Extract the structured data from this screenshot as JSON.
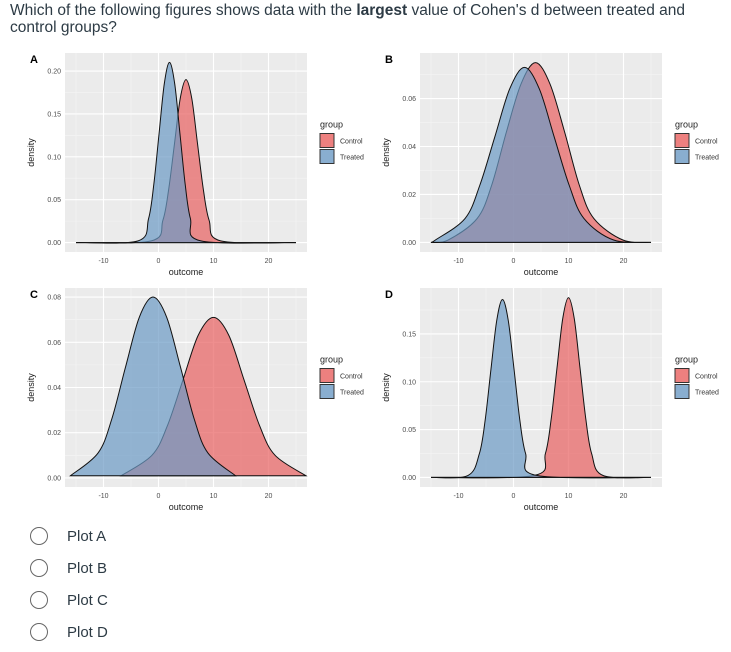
{
  "question": {
    "before": "Which of the following figures shows data with the ",
    "bold": "largest",
    "after": " value of Cohen's d between treated and control groups?"
  },
  "options": [
    "Plot A",
    "Plot B",
    "Plot C",
    "Plot D"
  ],
  "colors": {
    "Control": "#e8605f",
    "Treated": "#6b9ac4",
    "panel_bg": "#ebebeb"
  },
  "chart_data": [
    {
      "type": "area",
      "panel_label": "A",
      "xlabel": "outcome",
      "ylabel": "density",
      "xlim": [
        -17,
        27
      ],
      "ylim": [
        -0.011,
        0.221
      ],
      "xticks": [
        -10,
        0,
        10,
        20
      ],
      "yticks": [
        0,
        0.05,
        0.1,
        0.15,
        0.2
      ],
      "ytick_labels": [
        "0.00",
        "0.05",
        "0.10",
        "0.15",
        "0.20"
      ],
      "grid": true,
      "legend": {
        "title": "group",
        "position": "right",
        "entries": [
          "Control",
          "Treated"
        ]
      },
      "series": [
        {
          "name": "Control",
          "x": [
            -15,
            -1.3,
            0.8,
            1.85,
            2.9,
            3.95,
            5,
            6.05,
            7.1,
            8.15,
            9.2,
            11.3,
            25
          ],
          "y": [
            0,
            0.002,
            0.026,
            0.062,
            0.115,
            0.168,
            0.19,
            0.168,
            0.115,
            0.062,
            0.026,
            0.002,
            0
          ]
        },
        {
          "name": "Treated",
          "x": [
            -15,
            -3.7,
            -1.8,
            -0.85,
            0.1,
            1.05,
            2,
            2.95,
            3.9,
            4.85,
            5.8,
            7.7,
            25
          ],
          "y": [
            0,
            0.002,
            0.028,
            0.068,
            0.127,
            0.185,
            0.21,
            0.185,
            0.127,
            0.068,
            0.028,
            0.002,
            0
          ]
        }
      ]
    },
    {
      "type": "area",
      "panel_label": "B",
      "xlabel": "outcome",
      "ylabel": "density",
      "xlim": [
        -17,
        27
      ],
      "ylim": [
        -0.004,
        0.079
      ],
      "xticks": [
        -10,
        0,
        10,
        20
      ],
      "yticks": [
        0,
        0.02,
        0.04,
        0.06
      ],
      "ytick_labels": [
        "0.00",
        "0.02",
        "0.04",
        "0.06"
      ],
      "grid": true,
      "legend": {
        "title": "group",
        "position": "right",
        "entries": [
          "Control",
          "Treated"
        ]
      },
      "series": [
        {
          "name": "Control",
          "x": [
            -15,
            -11.9,
            -6.6,
            -3.95,
            -1.3,
            1.35,
            4,
            6.65,
            9.3,
            11.95,
            14.6,
            19.9,
            25
          ],
          "y": [
            0,
            0.001,
            0.01,
            0.024,
            0.046,
            0.066,
            0.075,
            0.066,
            0.046,
            0.024,
            0.01,
            0.001,
            0
          ]
        },
        {
          "name": "Treated",
          "x": [
            -15,
            -14.2,
            -8.8,
            -6.1,
            -3.4,
            -0.7,
            2,
            4.7,
            7.4,
            10.1,
            12.8,
            18.2,
            25
          ],
          "y": [
            0,
            0.001,
            0.01,
            0.024,
            0.044,
            0.064,
            0.073,
            0.064,
            0.044,
            0.024,
            0.01,
            0.001,
            0
          ]
        }
      ]
    },
    {
      "type": "area",
      "panel_label": "C",
      "xlabel": "outcome",
      "ylabel": "density",
      "xlim": [
        -17,
        27
      ],
      "ylim": [
        -0.004,
        0.084
      ],
      "xticks": [
        -10,
        0,
        10,
        20
      ],
      "yticks": [
        0,
        0.02,
        0.04,
        0.06,
        0.08
      ],
      "ytick_labels": [
        "0.00",
        "0.02",
        "0.04",
        "0.06",
        "0.08"
      ],
      "grid": true,
      "legend": {
        "title": "group",
        "position": "right",
        "entries": [
          "Control",
          "Treated"
        ]
      },
      "series": [
        {
          "name": "Control",
          "x": [
            -6.8,
            -1.2,
            1.6,
            4.4,
            7.2,
            10,
            12.8,
            15.6,
            18.4,
            21.2,
            26.8
          ],
          "y": [
            0.001,
            0.01,
            0.023,
            0.043,
            0.063,
            0.071,
            0.063,
            0.043,
            0.023,
            0.01,
            0.001
          ]
        },
        {
          "name": "Treated",
          "x": [
            -16,
            -11,
            -8.5,
            -6,
            -3.5,
            -1,
            1.5,
            4,
            6.5,
            9,
            14
          ],
          "y": [
            0.001,
            0.011,
            0.026,
            0.049,
            0.071,
            0.08,
            0.071,
            0.049,
            0.026,
            0.011,
            0.001
          ]
        }
      ]
    },
    {
      "type": "area",
      "panel_label": "D",
      "xlabel": "outcome",
      "ylabel": "density",
      "xlim": [
        -17,
        27
      ],
      "ylim": [
        -0.01,
        0.198
      ],
      "xticks": [
        -10,
        0,
        10,
        20
      ],
      "yticks": [
        0,
        0.05,
        0.1,
        0.15
      ],
      "ytick_labels": [
        "0.00",
        "0.05",
        "0.10",
        "0.15"
      ],
      "grid": true,
      "legend": {
        "title": "group",
        "position": "right",
        "entries": [
          "Control",
          "Treated"
        ]
      },
      "series": [
        {
          "name": "Control",
          "x": [
            -15,
            3.7,
            5.8,
            6.85,
            7.9,
            8.95,
            10,
            11.05,
            12.1,
            13.15,
            14.2,
            16.3,
            25
          ],
          "y": [
            0,
            0.002,
            0.025,
            0.061,
            0.114,
            0.166,
            0.188,
            0.166,
            0.114,
            0.061,
            0.025,
            0.002,
            0
          ]
        },
        {
          "name": "Treated",
          "x": [
            -15,
            -8.3,
            -6.2,
            -5.15,
            -4.1,
            -3.05,
            -2,
            -0.95,
            0.1,
            1.15,
            2.2,
            4.3,
            25
          ],
          "y": [
            0,
            0.002,
            0.025,
            0.06,
            0.113,
            0.164,
            0.186,
            0.164,
            0.113,
            0.06,
            0.025,
            0.002,
            0
          ]
        }
      ]
    }
  ]
}
